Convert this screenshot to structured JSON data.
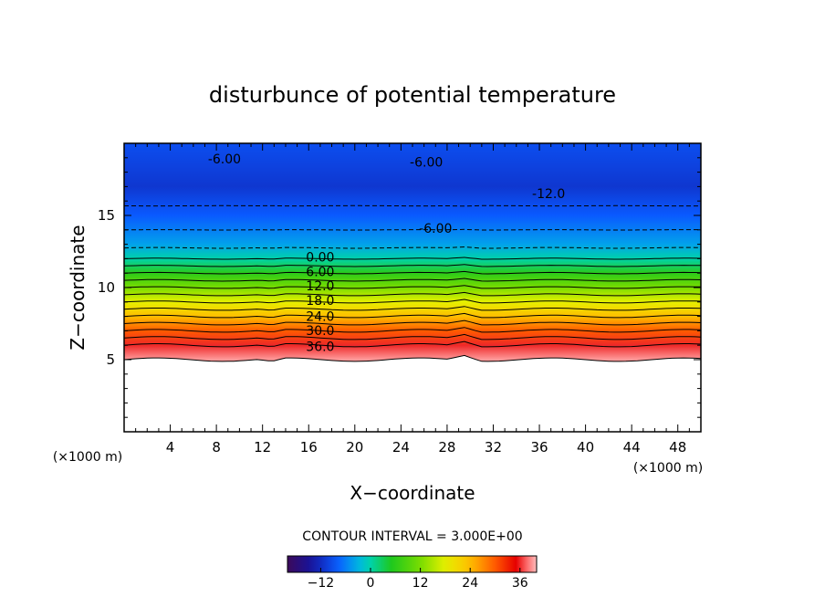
{
  "chart_data": {
    "type": "heatmap",
    "title": "disturbunce of potential temperature",
    "xlabel": "X−coordinate",
    "ylabel": "Z−coordinate",
    "x_unit": "(×1000 m)",
    "y_unit": "(×1000 m)",
    "xlim": [
      0,
      50
    ],
    "ylim": [
      0,
      20
    ],
    "x_ticks": [
      4,
      8,
      12,
      16,
      20,
      24,
      28,
      32,
      36,
      40,
      44,
      48
    ],
    "y_ticks": [
      5,
      10,
      15
    ],
    "contour_interval_text": "CONTOUR INTERVAL = 3.000E+00",
    "contour_levels": [
      -12,
      -9,
      -6,
      -3,
      0,
      3,
      6,
      9,
      12,
      15,
      18,
      21,
      24,
      27,
      30,
      33,
      36,
      39
    ],
    "contour_labels": [
      {
        "text": "0.00",
        "x": 17.0,
        "y": 11.8
      },
      {
        "text": "6.00",
        "x": 17.0,
        "y": 10.8
      },
      {
        "text": "12.0",
        "x": 17.0,
        "y": 9.8
      },
      {
        "text": "18.0",
        "x": 17.0,
        "y": 8.8
      },
      {
        "text": "24.0",
        "x": 17.0,
        "y": 7.7
      },
      {
        "text": "30.0",
        "x": 17.0,
        "y": 6.7
      },
      {
        "text": "36.0",
        "x": 17.0,
        "y": 5.6
      },
      {
        "text": "-6.00",
        "x": 8.7,
        "y": 18.6
      },
      {
        "text": "-6.00",
        "x": 26.2,
        "y": 18.4
      },
      {
        "text": "-12.0",
        "x": 36.8,
        "y": 16.2
      },
      {
        "text": "-6.00",
        "x": 27.0,
        "y": 13.8
      }
    ],
    "surface_height": 5.0,
    "layer_profile": [
      {
        "z": 5.0,
        "theta": 39
      },
      {
        "z": 6.0,
        "theta": 36
      },
      {
        "z": 7.0,
        "theta": 30
      },
      {
        "z": 8.0,
        "theta": 24
      },
      {
        "z": 9.0,
        "theta": 18
      },
      {
        "z": 10.0,
        "theta": 12
      },
      {
        "z": 11.0,
        "theta": 6
      },
      {
        "z": 12.0,
        "theta": 0
      },
      {
        "z": 13.0,
        "theta": -4
      },
      {
        "z": 15.0,
        "theta": -8
      },
      {
        "z": 17.0,
        "theta": -11
      },
      {
        "z": 20.0,
        "theta": -9
      }
    ],
    "colorbar": {
      "min": -20,
      "max": 40,
      "tick_values": [
        -12,
        0,
        12,
        24,
        36
      ],
      "tick_labels": [
        "−12",
        "0",
        "12",
        "24",
        "36"
      ]
    },
    "grid": false
  }
}
